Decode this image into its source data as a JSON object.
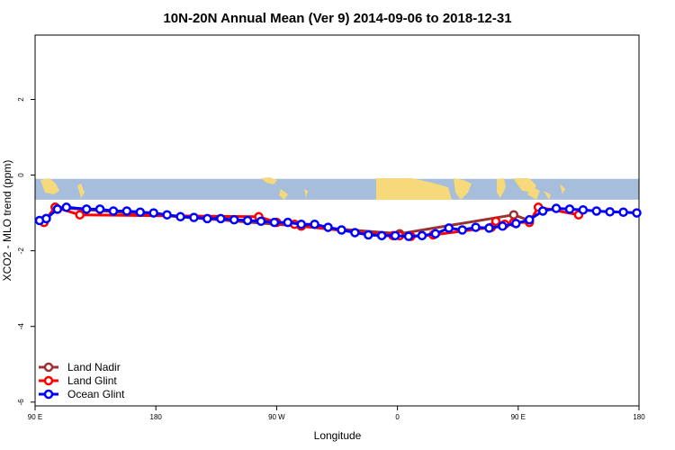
{
  "chart_data": {
    "type": "line",
    "title": "10N-20N Annual Mean (Ver 9)   2014-09-06 to 2018-12-31",
    "xlabel": "Longitude",
    "ylabel": "XCO2 - MLO trend (ppm)",
    "xlim": [
      -90,
      180
    ],
    "ylim": [
      -6.1,
      3.7
    ],
    "x_ticks": [
      {
        "value": -90,
        "label": "90 E"
      },
      {
        "value": -36,
        "label": "180"
      },
      {
        "value": 18,
        "label": "90 W"
      },
      {
        "value": 72,
        "label": "0"
      },
      {
        "value": 126,
        "label": "90 E"
      },
      {
        "value": 180,
        "label": "180"
      }
    ],
    "y_ticks": [
      {
        "value": 2,
        "label": "2"
      },
      {
        "value": 0,
        "label": "0"
      },
      {
        "value": -2,
        "label": "-2"
      },
      {
        "value": -4,
        "label": "-4"
      },
      {
        "value": -6,
        "label": "-6"
      }
    ],
    "map_band": {
      "y_top": -0.1,
      "y_bottom": -0.65,
      "ocean_color": "#a6bddb",
      "land_color": "#f5d97a"
    },
    "legend": {
      "position": "bottom-left"
    },
    "series": [
      {
        "name": "Land Nadir",
        "color": "#993333",
        "x": [
          -85,
          -81,
          73,
          124,
          131
        ],
        "y": [
          -1.15,
          -0.85,
          -1.55,
          -1.05,
          -1.2
        ]
      },
      {
        "name": "Land Glint",
        "color": "#ff0000",
        "x": [
          -86,
          -81,
          -70,
          10,
          18,
          26,
          29,
          70,
          73,
          78,
          88,
          114,
          116,
          120,
          124,
          131,
          135,
          153
        ],
        "y": [
          -1.25,
          -0.85,
          -1.05,
          -1.1,
          -1.25,
          -1.3,
          -1.35,
          -1.6,
          -1.6,
          -1.62,
          -1.58,
          -1.38,
          -1.22,
          -1.3,
          -1.25,
          -1.25,
          -0.85,
          -1.05
        ]
      },
      {
        "name": "Ocean Glint",
        "color": "#0000ff",
        "x": [
          -88,
          -85,
          -80,
          -76,
          -67,
          -61,
          -55,
          -49,
          -43,
          -37,
          -31,
          -25,
          -19,
          -13,
          -7,
          -1,
          5,
          11,
          17,
          23,
          29,
          35,
          41,
          47,
          53,
          59,
          65,
          71,
          77,
          83,
          89,
          95,
          101,
          107,
          113,
          119,
          125,
          131,
          137,
          143,
          149,
          155,
          161,
          167,
          173,
          179
        ],
        "y": [
          -1.2,
          -1.15,
          -0.9,
          -0.85,
          -0.9,
          -0.9,
          -0.95,
          -0.95,
          -0.98,
          -1.0,
          -1.05,
          -1.1,
          -1.12,
          -1.15,
          -1.15,
          -1.18,
          -1.2,
          -1.22,
          -1.25,
          -1.25,
          -1.3,
          -1.3,
          -1.38,
          -1.45,
          -1.52,
          -1.58,
          -1.6,
          -1.6,
          -1.62,
          -1.6,
          -1.55,
          -1.4,
          -1.45,
          -1.38,
          -1.4,
          -1.35,
          -1.28,
          -1.18,
          -0.95,
          -0.88,
          -0.9,
          -0.92,
          -0.95,
          -0.97,
          -0.98,
          -1.0
        ]
      }
    ]
  }
}
